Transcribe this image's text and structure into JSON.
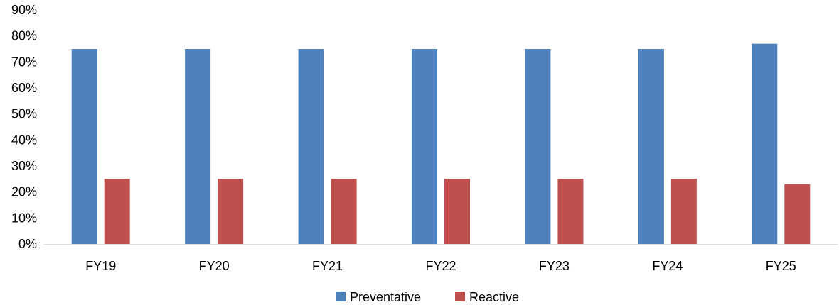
{
  "chart_data": {
    "type": "bar",
    "categories": [
      "FY19",
      "FY20",
      "FY21",
      "FY22",
      "FY23",
      "FY24",
      "FY25"
    ],
    "series": [
      {
        "name": "Preventative",
        "values": [
          75,
          75,
          75,
          75,
          75,
          75,
          77
        ],
        "color": "#4F81BD"
      },
      {
        "name": "Reactive",
        "values": [
          25,
          25,
          25,
          25,
          25,
          25,
          23
        ],
        "color": "#C0504D"
      }
    ],
    "ylim": [
      0,
      90
    ],
    "yticks": [
      0,
      10,
      20,
      30,
      40,
      50,
      60,
      70,
      80,
      90
    ],
    "ytick_suffix": "%",
    "grid": false,
    "legend_position": "bottom",
    "title": "",
    "xlabel": "",
    "ylabel": ""
  }
}
